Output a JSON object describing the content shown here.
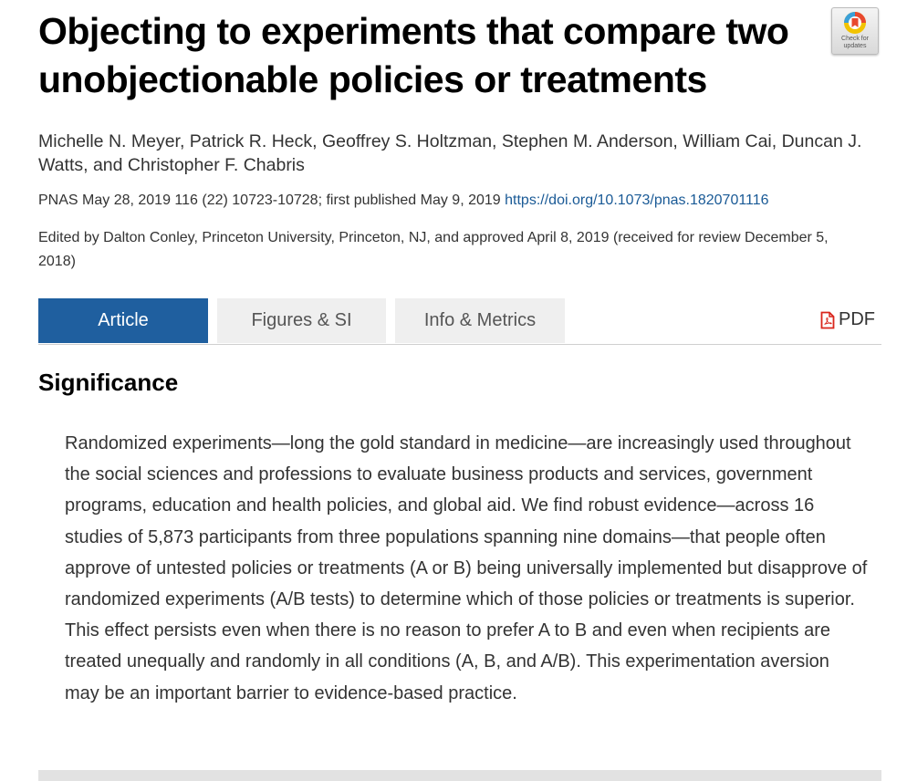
{
  "article": {
    "title": "Objecting to experiments that compare two unobjectionable policies or treatments",
    "authors": "Michelle N. Meyer, Patrick R. Heck, Geoffrey S. Holtzman, Stephen M. Anderson, William Cai, Duncan J. Watts, and Christopher F. Chabris",
    "citation_text": "PNAS May 28, 2019 116 (22) 10723-10728; first published May 9, 2019 ",
    "doi_link": "https://doi.org/10.1073/pnas.1820701116",
    "edited_by": "Edited by Dalton Conley, Princeton University, Princeton, NJ, and approved April 8, 2019 (received for review December 5, 2018)"
  },
  "check_updates": {
    "label": "Check for updates",
    "line1": "Check for",
    "line2": "updates",
    "icon": "check-for-updates-badge"
  },
  "tabs": [
    {
      "label": "Article",
      "active": true
    },
    {
      "label": "Figures & SI",
      "active": false
    },
    {
      "label": "Info & Metrics",
      "active": false
    }
  ],
  "pdf": {
    "label": "PDF",
    "icon": "pdf-file-icon",
    "color": "#d9261c"
  },
  "significance": {
    "heading": "Significance",
    "text": "Randomized experiments—long the gold standard in medicine—are increasingly used throughout the social sciences and professions to evaluate business products and services, government programs, education and health policies, and global aid. We find robust evidence—across 16 studies of 5,873 participants from three populations spanning nine domains—that people often approve of untested policies or treatments (A or B) being universally implemented but disapprove of randomized experiments (A/B tests) to determine which of those policies or treatments is superior. This effect persists even when there is no reason to prefer A to B and even when recipients are treated unequally and randomly in all conditions (A, B, and A/B). This experimentation aversion may be an important barrier to evidence-based practice."
  },
  "colors": {
    "tab_active": "#1f5f9f",
    "tab_inactive": "#efefef",
    "link": "#1a5a96"
  }
}
